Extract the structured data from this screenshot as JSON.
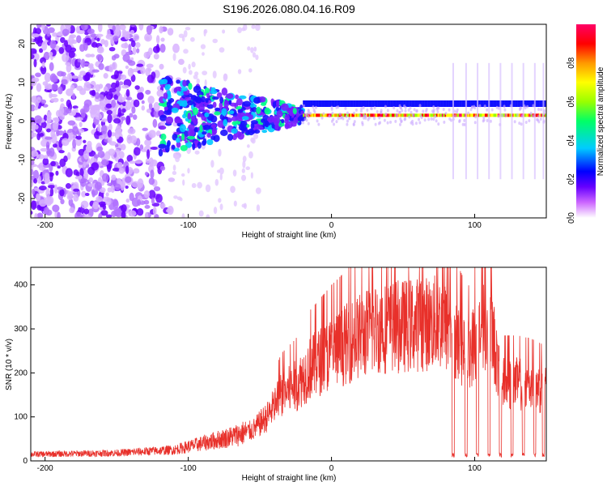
{
  "title": "S196.2026.080.04.16.R09",
  "chart_data": [
    {
      "type": "heatmap",
      "xlabel": "Height of straight line (km)",
      "ylabel": "Frequency (Hz)",
      "xlim": [
        -210,
        150
      ],
      "ylim": [
        -25,
        25
      ],
      "x_ticks": [
        -200,
        -100,
        0,
        100
      ],
      "y_ticks": [
        -20,
        -10,
        0,
        10,
        20
      ],
      "colorbar": {
        "label": "Normalized spectral amplitude",
        "range": [
          0,
          1
        ],
        "ticks": [
          "0.0",
          "0.2",
          "0.4",
          "0.6",
          "0.8"
        ],
        "colors": [
          "#ffffff",
          "#cc66ff",
          "#6600ff",
          "#0000ff",
          "#00ccff",
          "#00ff66",
          "#99ff00",
          "#ffff00",
          "#ff9900",
          "#ff0000",
          "#ff0066"
        ]
      },
      "description_points": {
        "noise_region_x": [
          -210,
          -120
        ],
        "transition_region_x": [
          -120,
          -20
        ],
        "band_center_freq_hz": 1.5,
        "band_start_x": -20
      }
    },
    {
      "type": "line",
      "xlabel": "Height of straight line (km)",
      "ylabel": "SNR (10 * v/v)",
      "xlim": [
        -210,
        150
      ],
      "ylim": [
        0,
        440
      ],
      "x_ticks": [
        -200,
        -100,
        0,
        100
      ],
      "y_ticks": [
        0,
        100,
        200,
        300,
        400
      ],
      "color": "#e8302a",
      "envelope": {
        "x": [
          -210,
          -150,
          -110,
          -90,
          -70,
          -55,
          -45,
          -35,
          -25,
          -15,
          0,
          15,
          30,
          45,
          60,
          75,
          85,
          95,
          105,
          112,
          118,
          130,
          140,
          150
        ],
        "y": [
          15,
          18,
          25,
          40,
          55,
          70,
          100,
          150,
          170,
          210,
          245,
          275,
          300,
          305,
          310,
          315,
          290,
          240,
          300,
          300,
          175,
          175,
          170,
          160
        ]
      },
      "dropouts_x": [
        85,
        94,
        102,
        110,
        118,
        126,
        134,
        142,
        148
      ]
    }
  ]
}
